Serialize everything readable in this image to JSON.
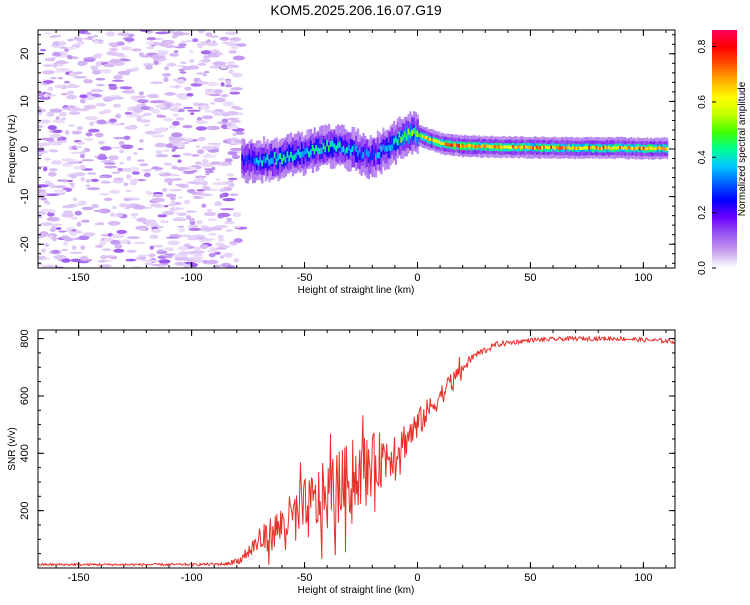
{
  "title": "KOM5.2025.206.16.07.G19",
  "chart_data": [
    {
      "type": "heatmap",
      "xlabel": "Height of straight line (km)",
      "ylabel": "Frequency (Hz)",
      "xlim": [
        -168,
        114
      ],
      "ylim": [
        -25,
        25
      ],
      "xticks": [
        -150,
        -100,
        -50,
        0,
        50,
        100
      ],
      "yticks": [
        -20,
        -10,
        0,
        10,
        20
      ],
      "colorbar": {
        "label": "Normalized spectral amplitude",
        "range": [
          0,
          0.86
        ],
        "ticks": [
          0.0,
          0.2,
          0.4,
          0.6,
          0.8
        ],
        "colormap": [
          "#ffffff",
          "#c8a0f0",
          "#9a55f0",
          "#6a00ff",
          "#0000ff",
          "#0060ff",
          "#00c8ff",
          "#00ff90",
          "#40ff00",
          "#c0ff00",
          "#ffff00",
          "#ffb000",
          "#ff5000",
          "#ff0000",
          "#ff0060"
        ]
      },
      "noise_region_x": [
        -168,
        -78
      ],
      "signal_track": [
        {
          "x": -78,
          "f": -2.5,
          "a": 0.25
        },
        {
          "x": -70,
          "f": -2.3,
          "a": 0.35
        },
        {
          "x": -62,
          "f": -2.0,
          "a": 0.42
        },
        {
          "x": -55,
          "f": -1.2,
          "a": 0.4
        },
        {
          "x": -48,
          "f": -0.5,
          "a": 0.38
        },
        {
          "x": -40,
          "f": 0.5,
          "a": 0.42
        },
        {
          "x": -33,
          "f": 0.2,
          "a": 0.38
        },
        {
          "x": -27,
          "f": -0.5,
          "a": 0.35
        },
        {
          "x": -22,
          "f": -1.5,
          "a": 0.3
        },
        {
          "x": -17,
          "f": -0.8,
          "a": 0.34
        },
        {
          "x": -12,
          "f": 0.8,
          "a": 0.4
        },
        {
          "x": -8,
          "f": 2.5,
          "a": 0.46
        },
        {
          "x": -4,
          "f": 3.2,
          "a": 0.5
        },
        {
          "x": 0,
          "f": 3.0,
          "a": 0.55
        },
        {
          "x": 5,
          "f": 2.0,
          "a": 0.62
        },
        {
          "x": 10,
          "f": 1.2,
          "a": 0.68
        },
        {
          "x": 15,
          "f": 0.8,
          "a": 0.72
        },
        {
          "x": 20,
          "f": 0.6,
          "a": 0.7
        },
        {
          "x": 30,
          "f": 0.5,
          "a": 0.66
        },
        {
          "x": 40,
          "f": 0.4,
          "a": 0.7
        },
        {
          "x": 50,
          "f": 0.3,
          "a": 0.66
        },
        {
          "x": 60,
          "f": 0.3,
          "a": 0.7
        },
        {
          "x": 70,
          "f": 0.2,
          "a": 0.64
        },
        {
          "x": 80,
          "f": 0.2,
          "a": 0.68
        },
        {
          "x": 90,
          "f": 0.2,
          "a": 0.66
        },
        {
          "x": 100,
          "f": 0.1,
          "a": 0.68
        },
        {
          "x": 110,
          "f": 0.1,
          "a": 0.62
        }
      ]
    },
    {
      "type": "line",
      "xlabel": "Height of straight line (km)",
      "ylabel": "SNR (v/v)",
      "xlim": [
        -168,
        114
      ],
      "ylim": [
        0,
        830
      ],
      "xticks": [
        -150,
        -100,
        -50,
        0,
        50,
        100
      ],
      "yticks": [
        200,
        400,
        600,
        800
      ],
      "color": "#e8302a",
      "envelope": {
        "x": [
          -168,
          -130,
          -100,
          -85,
          -78,
          -72,
          -65,
          -58,
          -50,
          -42,
          -35,
          -28,
          -20,
          -12,
          -5,
          2,
          10,
          18,
          25,
          35,
          50,
          70,
          90,
          114
        ],
        "mean": [
          12,
          12,
          12,
          14,
          30,
          80,
          120,
          160,
          200,
          240,
          280,
          320,
          360,
          400,
          450,
          520,
          600,
          680,
          740,
          780,
          795,
          800,
          800,
          790
        ],
        "spread": [
          8,
          8,
          8,
          10,
          25,
          70,
          110,
          150,
          200,
          230,
          240,
          230,
          200,
          160,
          120,
          90,
          70,
          50,
          30,
          20,
          15,
          15,
          15,
          15
        ]
      }
    }
  ]
}
